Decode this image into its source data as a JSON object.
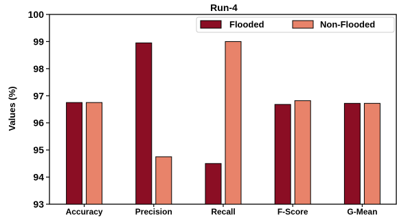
{
  "chart_data": {
    "type": "bar",
    "title": "Run-4",
    "xlabel": "",
    "ylabel": "Values (%)",
    "ylim": [
      93,
      100
    ],
    "yticks": [
      93,
      94,
      95,
      96,
      97,
      98,
      99,
      100
    ],
    "categories": [
      "Accuracy",
      "Precision",
      "Recall",
      "F-Score",
      "G-Mean"
    ],
    "series": [
      {
        "name": "Flooded",
        "color": "#8b0e24",
        "values": [
          96.75,
          98.95,
          94.5,
          96.68,
          96.72
        ]
      },
      {
        "name": "Non-Flooded",
        "color": "#e8836a",
        "values": [
          96.75,
          94.75,
          99.0,
          96.82,
          96.72
        ]
      }
    ],
    "legend_position": "top-right",
    "grid": false
  }
}
